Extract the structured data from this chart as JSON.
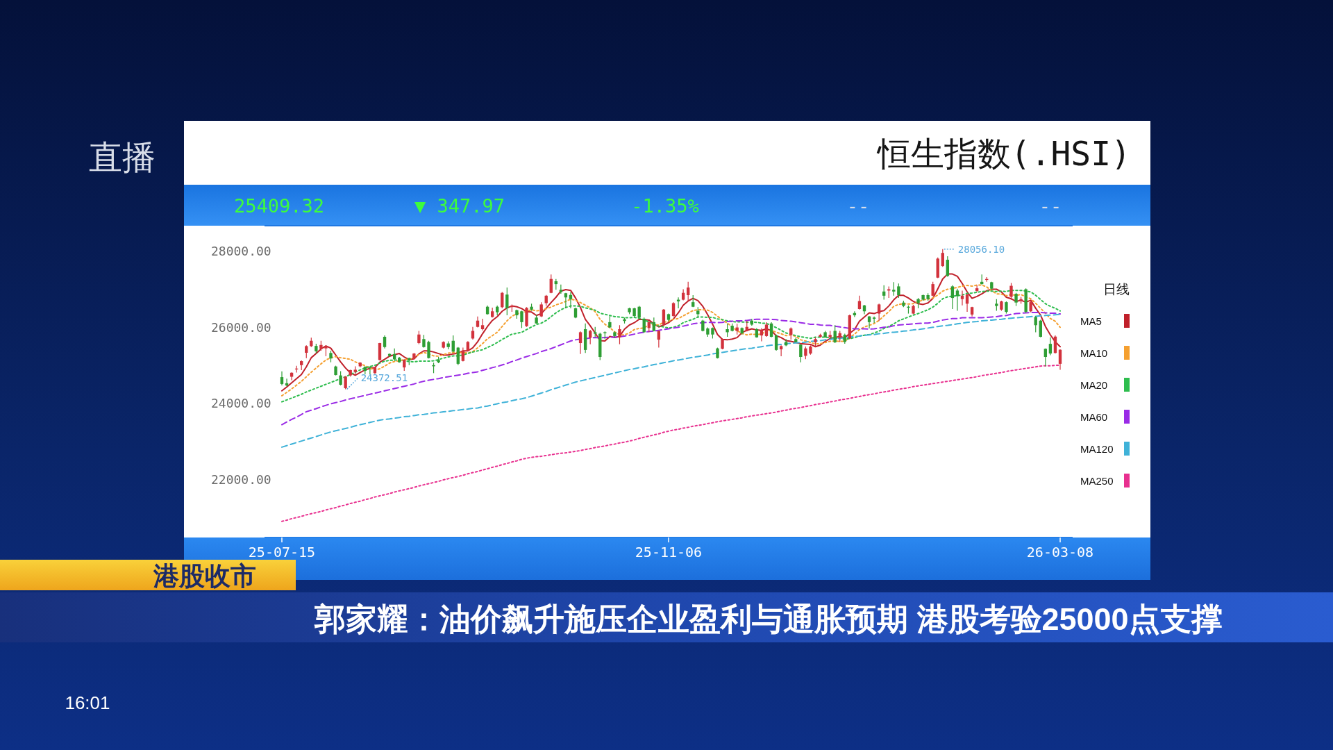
{
  "chart_data": {
    "type": "candlestick",
    "title": "恒生指数(.HSI)",
    "annotations": [
      "24372.51",
      "28056.10",
      "25409.32",
      "▼ 347.97",
      "-1.35%",
      "--",
      "--",
      "直播",
      "港股收市",
      "郭家耀：油价飙升施压企业盈利与通胀预期 港股考验25000点支撑",
      "16:01"
    ],
    "categories": [
      "25-07-15",
      null,
      null,
      null,
      null,
      null,
      null,
      null,
      null,
      null,
      null,
      null,
      null,
      null,
      null,
      null,
      null,
      null,
      null,
      null,
      null,
      null,
      null,
      null,
      null,
      null,
      null,
      null,
      null,
      null,
      null,
      null,
      null,
      null,
      null,
      null,
      null,
      null,
      null,
      null,
      null,
      null,
      null,
      null,
      null,
      null,
      null,
      null,
      null,
      null,
      null,
      null,
      null,
      null,
      null,
      null,
      null,
      null,
      null,
      null,
      null,
      null,
      null,
      null,
      null,
      null,
      null,
      null,
      null,
      null,
      null,
      null,
      null,
      null,
      null,
      null,
      null,
      null,
      null,
      "25-11-06",
      null,
      null,
      null,
      null,
      null,
      null,
      null,
      null,
      null,
      null,
      null,
      null,
      null,
      null,
      null,
      null,
      null,
      null,
      null,
      null,
      null,
      null,
      null,
      null,
      null,
      null,
      null,
      null,
      null,
      null,
      null,
      null,
      null,
      null,
      null,
      null,
      null,
      null,
      null,
      null,
      null,
      null,
      null,
      null,
      null,
      null,
      null,
      null,
      null,
      null,
      null,
      null,
      null,
      null,
      null,
      null,
      null,
      null,
      null,
      null,
      null,
      null,
      null,
      null,
      null,
      null,
      null,
      null,
      null,
      null,
      null,
      null,
      null,
      null,
      null,
      null,
      null,
      null,
      null,
      "26-03-08"
    ],
    "ohlc": [
      [
        24690,
        24840,
        24470,
        24510
      ],
      [
        24530,
        24650,
        24450,
        24470
      ],
      [
        24700,
        24815,
        24610,
        24805
      ],
      [
        24900,
        24990,
        24810,
        24915
      ],
      [
        25005,
        25130,
        24875,
        25110
      ],
      [
        25330,
        25525,
        25190,
        25505
      ],
      [
        25505,
        25725,
        25480,
        25645
      ],
      [
        25510,
        25565,
        25310,
        25370
      ],
      [
        25435,
        25645,
        25385,
        25535
      ],
      [
        25445,
        25510,
        25240,
        25505
      ],
      [
        25325,
        25385,
        25080,
        25180
      ],
      [
        24970,
        24990,
        24735,
        24745
      ],
      [
        24735,
        24845,
        24470,
        24490
      ],
      [
        24400,
        24715,
        24372.51,
        24705
      ],
      [
        24735,
        24885,
        24705,
        24875
      ],
      [
        24825,
        24975,
        24775,
        24885
      ],
      [
        24975,
        25085,
        24945,
        25070
      ],
      [
        24960,
        24975,
        24765,
        24855
      ],
      [
        24960,
        24975,
        24765,
        24935
      ],
      [
        24795,
        24960,
        24775,
        24945
      ],
      [
        25140,
        25590,
        25130,
        25585
      ],
      [
        25750,
        25785,
        25445,
        25480
      ],
      [
        25300,
        25310,
        25220,
        25250
      ],
      [
        25295,
        25445,
        25130,
        25160
      ],
      [
        25200,
        25220,
        25070,
        25080
      ],
      [
        24945,
        25160,
        24855,
        25145
      ],
      [
        25190,
        25200,
        25005,
        25130
      ],
      [
        25180,
        25325,
        25160,
        25310
      ],
      [
        25585,
        25905,
        25555,
        25810
      ],
      [
        25690,
        25800,
        25465,
        25480
      ],
      [
        25615,
        25645,
        25180,
        25190
      ],
      [
        25005,
        25070,
        24795,
        24975
      ],
      [
        25140,
        25220,
        25055,
        25080
      ],
      [
        25465,
        25630,
        25445,
        25615
      ],
      [
        25575,
        25630,
        25420,
        25480
      ],
      [
        25645,
        25785,
        25340,
        25360
      ],
      [
        25465,
        25480,
        25005,
        25040
      ],
      [
        25115,
        25465,
        25100,
        25385
      ],
      [
        25385,
        25635,
        25370,
        25615
      ],
      [
        25705,
        26010,
        25675,
        25905
      ],
      [
        26010,
        26285,
        25995,
        26175
      ],
      [
        25950,
        26225,
        25920,
        26055
      ],
      [
        26540,
        26570,
        26335,
        26345
      ],
      [
        26270,
        26515,
        26255,
        26420
      ],
      [
        26540,
        26570,
        26315,
        26395
      ],
      [
        26530,
        26925,
        26500,
        26905
      ],
      [
        26860,
        27045,
        26315,
        26500
      ],
      [
        26530,
        26600,
        26405,
        26570
      ],
      [
        26450,
        26465,
        26225,
        26315
      ],
      [
        26420,
        26435,
        25980,
        26135
      ],
      [
        26030,
        26530,
        26010,
        26510
      ],
      [
        26540,
        26620,
        26435,
        26465
      ],
      [
        26255,
        26335,
        26090,
        26100
      ],
      [
        26285,
        26660,
        26270,
        26600
      ],
      [
        26635,
        26850,
        26560,
        26830
      ],
      [
        26905,
        27390,
        26895,
        27270
      ],
      [
        27210,
        27270,
        26985,
        27135
      ],
      [
        26985,
        27125,
        26880,
        26925
      ],
      [
        26895,
        26905,
        26500,
        26785
      ],
      [
        26850,
        26925,
        26500,
        26740
      ],
      [
        26500,
        26515,
        26240,
        26255
      ],
      [
        25585,
        25890,
        25300,
        25870
      ],
      [
        25950,
        26100,
        25325,
        25405
      ],
      [
        25725,
        25930,
        25555,
        25905
      ],
      [
        25870,
        26010,
        25735,
        25830
      ],
      [
        25830,
        25860,
        25140,
        25220
      ],
      [
        25870,
        25890,
        25690,
        25845
      ],
      [
        26135,
        26295,
        25980,
        25995
      ],
      [
        25870,
        25890,
        25735,
        25770
      ],
      [
        25735,
        26055,
        25555,
        25950
      ],
      [
        26210,
        26255,
        26100,
        26165
      ],
      [
        26500,
        26515,
        26345,
        26395
      ],
      [
        26500,
        26510,
        26270,
        26295
      ],
      [
        26540,
        26560,
        26235,
        26255
      ],
      [
        26225,
        26255,
        25860,
        25870
      ],
      [
        25980,
        26165,
        25870,
        26135
      ],
      [
        26135,
        26255,
        25890,
        25905
      ],
      [
        25675,
        25920,
        25465,
        25905
      ],
      [
        26070,
        26480,
        26055,
        26465
      ],
      [
        26345,
        26360,
        26150,
        26195
      ],
      [
        26295,
        26660,
        26285,
        26635
      ],
      [
        26725,
        26785,
        26500,
        26680
      ],
      [
        26725,
        27000,
        26710,
        26905
      ],
      [
        26845,
        27195,
        26700,
        27045
      ],
      [
        26660,
        26845,
        26530,
        26540
      ],
      [
        26435,
        26530,
        26255,
        26345
      ],
      [
        26175,
        26195,
        25890,
        25905
      ],
      [
        25970,
        25995,
        25750,
        25810
      ],
      [
        25980,
        25995,
        25705,
        25810
      ],
      [
        25445,
        25465,
        25180,
        25190
      ],
      [
        25435,
        25705,
        25420,
        25690
      ],
      [
        25950,
        26100,
        25750,
        25870
      ],
      [
        26040,
        26100,
        25890,
        25905
      ],
      [
        25905,
        26090,
        25810,
        25995
      ],
      [
        25980,
        25995,
        25810,
        25840
      ],
      [
        25905,
        26175,
        25890,
        26010
      ],
      [
        26175,
        26225,
        26040,
        26070
      ],
      [
        25950,
        25980,
        25725,
        25735
      ],
      [
        25785,
        25980,
        25630,
        25920
      ],
      [
        25770,
        26135,
        25750,
        26070
      ],
      [
        26100,
        26135,
        25735,
        25750
      ],
      [
        25785,
        25810,
        25385,
        25405
      ],
      [
        25420,
        25525,
        25240,
        25505
      ],
      [
        25615,
        25690,
        25505,
        25525
      ],
      [
        25800,
        25995,
        25675,
        25970
      ],
      [
        25690,
        25735,
        25605,
        25615
      ],
      [
        25545,
        25555,
        25080,
        25220
      ],
      [
        25250,
        25495,
        25160,
        25445
      ],
      [
        25310,
        25525,
        25280,
        25495
      ],
      [
        25605,
        25735,
        25495,
        25690
      ],
      [
        25750,
        25830,
        25725,
        25800
      ],
      [
        25870,
        25905,
        25725,
        25735
      ],
      [
        25735,
        25905,
        25705,
        25800
      ],
      [
        25905,
        26055,
        25585,
        25605
      ],
      [
        25725,
        25905,
        25615,
        25845
      ],
      [
        25800,
        25830,
        25565,
        25615
      ],
      [
        25705,
        26335,
        25690,
        26315
      ],
      [
        26375,
        26420,
        26270,
        26315
      ],
      [
        26480,
        26830,
        26465,
        26690
      ],
      [
        26575,
        26590,
        26345,
        26420
      ],
      [
        26285,
        26295,
        25970,
        26135
      ],
      [
        26255,
        26285,
        26115,
        26225
      ],
      [
        26360,
        26620,
        26165,
        26600
      ],
      [
        26940,
        27105,
        26725,
        26830
      ],
      [
        26965,
        27075,
        26770,
        27000
      ],
      [
        26985,
        27185,
        26830,
        26940
      ],
      [
        27075,
        27150,
        26770,
        26845
      ],
      [
        26650,
        26700,
        26530,
        26560
      ],
      [
        26540,
        26575,
        26360,
        26515
      ],
      [
        26360,
        26590,
        26345,
        26560
      ],
      [
        26740,
        26770,
        26500,
        26635
      ],
      [
        26845,
        26860,
        26700,
        26725
      ],
      [
        26845,
        26895,
        26700,
        26740
      ],
      [
        26830,
        27195,
        26820,
        27135
      ],
      [
        27305,
        27835,
        27290,
        27805
      ],
      [
        27610,
        28056.1,
        27590,
        27955
      ],
      [
        27775,
        27865,
        27330,
        27350
      ],
      [
        27075,
        27105,
        26480,
        26770
      ],
      [
        26965,
        27015,
        26435,
        26820
      ],
      [
        26740,
        26965,
        26575,
        26830
      ],
      [
        26620,
        26880,
        26405,
        26860
      ],
      [
        26335,
        26540,
        26285,
        26530
      ],
      [
        26955,
        27105,
        26925,
        27025
      ],
      [
        27195,
        27390,
        27125,
        27135
      ],
      [
        27245,
        27320,
        27195,
        27270
      ],
      [
        27185,
        27195,
        26985,
        27015
      ],
      [
        26620,
        26740,
        26435,
        26560
      ],
      [
        26465,
        26700,
        26435,
        26680
      ],
      [
        26660,
        26680,
        26360,
        26405
      ],
      [
        26800,
        27165,
        26725,
        27090
      ],
      [
        26880,
        26905,
        26560,
        26650
      ],
      [
        26700,
        26800,
        26620,
        26740
      ],
      [
        27000,
        27025,
        26375,
        26405
      ],
      [
        26420,
        26700,
        26395,
        26660
      ],
      [
        26270,
        26295,
        25870,
        26055
      ],
      [
        26175,
        26195,
        25735,
        25750
      ],
      [
        25435,
        25445,
        24975,
        25220
      ],
      [
        25565,
        25735,
        25265,
        25310
      ],
      [
        25325,
        25785,
        25310,
        25755
      ],
      [
        25040,
        25420,
        24885,
        25409.32
      ]
    ],
    "colors": [
      "#2e9e34",
      "#2e9e34",
      "#d2323c",
      "#d2323c",
      "#d2323c",
      "#d2323c",
      "#d2323c",
      "#2e9e34",
      "#d2323c",
      "#d2323c",
      "#2e9e34",
      "#2e9e34",
      "#2e9e34",
      "#d2323c",
      "#d2323c",
      "#d2323c",
      "#d2323c",
      "#2e9e34",
      "#2e9e34",
      "#d2323c",
      "#d2323c",
      "#2e9e34",
      "#2e9e34",
      "#2e9e34",
      "#2e9e34",
      "#d2323c",
      "#2e9e34",
      "#d2323c",
      "#d2323c",
      "#2e9e34",
      "#2e9e34",
      "#2e9e34",
      "#2e9e34",
      "#d2323c",
      "#2e9e34",
      "#2e9e34",
      "#2e9e34",
      "#d2323c",
      "#d2323c",
      "#d2323c",
      "#d2323c",
      "#d2323c",
      "#2e9e34",
      "#d2323c",
      "#2e9e34",
      "#d2323c",
      "#2e9e34",
      "#d2323c",
      "#2e9e34",
      "#2e9e34",
      "#d2323c",
      "#2e9e34",
      "#2e9e34",
      "#d2323c",
      "#d2323c",
      "#d2323c",
      "#2e9e34",
      "#2e9e34",
      "#2e9e34",
      "#2e9e34",
      "#2e9e34",
      "#d2323c",
      "#2e9e34",
      "#d2323c",
      "#2e9e34",
      "#2e9e34",
      "#2e9e34",
      "#2e9e34",
      "#2e9e34",
      "#d2323c",
      "#2e9e34",
      "#2e9e34",
      "#2e9e34",
      "#2e9e34",
      "#2e9e34",
      "#d2323c",
      "#2e9e34",
      "#d2323c",
      "#d2323c",
      "#2e9e34",
      "#d2323c",
      "#2e9e34",
      "#d2323c",
      "#d2323c",
      "#2e9e34",
      "#2e9e34",
      "#2e9e34",
      "#2e9e34",
      "#2e9e34",
      "#2e9e34",
      "#d2323c",
      "#2e9e34",
      "#2e9e34",
      "#d2323c",
      "#2e9e34",
      "#d2323c",
      "#2e9e34",
      "#2e9e34",
      "#d2323c",
      "#d2323c",
      "#2e9e34",
      "#2e9e34",
      "#d2323c",
      "#2e9e34",
      "#d2323c",
      "#2e9e34",
      "#2e9e34",
      "#d2323c",
      "#d2323c",
      "#d2323c",
      "#d2323c",
      "#2e9e34",
      "#d2323c",
      "#2e9e34",
      "#d2323c",
      "#2e9e34",
      "#d2323c",
      "#2e9e34",
      "#d2323c",
      "#2e9e34",
      "#2e9e34",
      "#2e9e34",
      "#d2323c",
      "#2e9e34",
      "#d2323c",
      "#2e9e34",
      "#2e9e34",
      "#2e9e34",
      "#2e9e34",
      "#d2323c",
      "#2e9e34",
      "#2e9e34",
      "#2e9e34",
      "#d2323c",
      "#d2323c",
      "#d2323c",
      "#2e9e34",
      "#2e9e34",
      "#2e9e34",
      "#d2323c",
      "#d2323c",
      "#d2323c",
      "#d2323c",
      "#2e9e34",
      "#d2323c",
      "#2e9e34",
      "#2e9e34",
      "#d2323c",
      "#2e9e34",
      "#d2323c",
      "#2e9e34",
      "#d2323c",
      "#2e9e34",
      "#d2323c",
      "#2e9e34",
      "#2e9e34",
      "#2e9e34",
      "#2e9e34",
      "#d2323c",
      "#d2323c"
    ],
    "series": [
      {
        "name": "MA5",
        "type": "line",
        "color": "#c0202a",
        "line_style": "solid",
        "values": [
          24330,
          24430,
          24540,
          24650,
          24760,
          24960,
          25200,
          25310,
          25430,
          25510,
          25450,
          25270,
          25090,
          24930,
          24800,
          24740,
          24810,
          24880,
          24920,
          24940,
          25080,
          25160,
          25240,
          25280,
          25310,
          25220,
          25150,
          25170,
          25300,
          25380,
          25380,
          25350,
          25310,
          25270,
          25270,
          25300,
          25320,
          25380,
          25380,
          25460,
          25620,
          25830,
          26020,
          26180,
          26280,
          26420,
          26510,
          26560,
          26540,
          26490,
          26410,
          26400,
          26310,
          26360,
          26500,
          26650,
          26790,
          26950,
          26990,
          26970,
          26770,
          26520,
          26210,
          26040,
          25850,
          25650,
          25640,
          25760,
          25730,
          25760,
          25950,
          26060,
          26120,
          26210,
          26200,
          26190,
          26090,
          26010,
          26060,
          26120,
          26220,
          26380,
          26580,
          26690,
          26760,
          26700,
          26550,
          26330,
          26080,
          25810,
          25680,
          25670,
          25690,
          25730,
          25860,
          25920,
          25960,
          25930,
          25920,
          25960,
          25910,
          25780,
          25730,
          25650,
          25630,
          25600,
          25570,
          25560,
          25550,
          25490,
          25530,
          25630,
          25700,
          25730,
          25760,
          25720,
          25840,
          25940,
          26160,
          26270,
          26380,
          26360,
          26410,
          26440,
          26560,
          26720,
          26840,
          26840,
          26770,
          26680,
          26620,
          26600,
          26640,
          26760,
          27010,
          27270,
          27400,
          27400,
          27340,
          27150,
          26930,
          26760,
          26810,
          26880,
          26960,
          27000,
          27000,
          26930,
          26790,
          26750,
          26680,
          26710,
          26660,
          26710,
          26500,
          26320,
          26020,
          25800,
          25620,
          25490
        ]
      },
      {
        "name": "MA10",
        "type": "line",
        "color": "#f5a030",
        "line_style": "dotted",
        "values": [
          24200,
          24290,
          24380,
          24480,
          24580,
          24700,
          24820,
          24930,
          25040,
          25140,
          25200,
          25230,
          25200,
          25180,
          25160,
          25090,
          25040,
          24990,
          24930,
          24870,
          24910,
          24980,
          25060,
          25100,
          25120,
          25150,
          25160,
          25200,
          25290,
          25340,
          25300,
          25250,
          25240,
          25280,
          25320,
          25340,
          25330,
          25340,
          25320,
          25360,
          25460,
          25570,
          25700,
          25780,
          25870,
          26020,
          26170,
          26290,
          26360,
          26380,
          26420,
          26460,
          26430,
          26450,
          26490,
          26530,
          26590,
          26630,
          26680,
          26740,
          26710,
          26650,
          26580,
          26510,
          26410,
          26210,
          26080,
          25990,
          25880,
          25800,
          25800,
          25850,
          25940,
          25970,
          25980,
          26070,
          26070,
          26060,
          26130,
          26160,
          26210,
          26230,
          26300,
          26370,
          26440,
          26460,
          26460,
          26450,
          26390,
          26290,
          26190,
          26110,
          26010,
          25910,
          25840,
          25800,
          25820,
          25810,
          25820,
          25910,
          25920,
          25870,
          25830,
          25780,
          25800,
          25760,
          25670,
          25640,
          25600,
          25560,
          25570,
          25600,
          25630,
          25640,
          25630,
          25630,
          25730,
          25820,
          25940,
          26010,
          26050,
          26100,
          26180,
          26300,
          26410,
          26550,
          26600,
          26620,
          26610,
          26620,
          26670,
          26720,
          26740,
          26770,
          26850,
          26950,
          27000,
          27020,
          27050,
          27080,
          27100,
          27080,
          27110,
          27110,
          27060,
          26960,
          26880,
          26870,
          26830,
          26860,
          26840,
          26860,
          26800,
          26750,
          26630,
          26500,
          26370,
          26230,
          26160,
          26000
        ]
      },
      {
        "name": "MA20",
        "type": "line",
        "color": "#2ebd4e",
        "line_style": "dotted",
        "values": [
          24040,
          24090,
          24140,
          24190,
          24240,
          24300,
          24350,
          24400,
          24450,
          24500,
          24550,
          24600,
          24650,
          24700,
          24760,
          24820,
          24880,
          24930,
          24970,
          25000,
          25060,
          25110,
          25130,
          25140,
          25140,
          25120,
          25100,
          25090,
          25110,
          25110,
          25110,
          25120,
          25150,
          25190,
          25220,
          25250,
          25250,
          25270,
          25310,
          25350,
          25380,
          25410,
          25470,
          25530,
          25600,
          25680,
          25750,
          25820,
          25840,
          25870,
          25940,
          26010,
          26070,
          26110,
          26180,
          26280,
          26380,
          26460,
          26520,
          26560,
          26560,
          26550,
          26510,
          26480,
          26450,
          26370,
          26340,
          26310,
          26280,
          26270,
          26250,
          26250,
          26260,
          26240,
          26190,
          26140,
          26080,
          26030,
          26010,
          25980,
          26000,
          26040,
          26120,
          26170,
          26210,
          26270,
          26270,
          26260,
          26260,
          26220,
          26200,
          26170,
          26150,
          26140,
          26140,
          26130,
          26140,
          26130,
          26110,
          26100,
          26050,
          25990,
          25920,
          25850,
          25820,
          25780,
          25750,
          25730,
          25710,
          25740,
          25740,
          25740,
          25730,
          25710,
          25710,
          25690,
          25700,
          25730,
          25770,
          25790,
          25810,
          25850,
          25900,
          25970,
          26020,
          26090,
          26170,
          26220,
          26270,
          26320,
          26360,
          26410,
          26460,
          26530,
          26630,
          26750,
          26800,
          26820,
          26830,
          26850,
          26890,
          26900,
          26920,
          26940,
          26950,
          26950,
          26940,
          26950,
          26940,
          26970,
          26970,
          26970,
          26950,
          26930,
          26840,
          26730,
          26620,
          26550,
          26500,
          26430
        ]
      },
      {
        "name": "MA60",
        "type": "line",
        "color": "#9a2be6",
        "line_style": "dashed",
        "values": [
          23440,
          23510,
          23580,
          23640,
          23710,
          23780,
          23820,
          23860,
          23910,
          23950,
          23990,
          24020,
          24050,
          24090,
          24120,
          24150,
          24180,
          24210,
          24240,
          24270,
          24300,
          24330,
          24360,
          24390,
          24420,
          24450,
          24480,
          24510,
          24550,
          24580,
          24610,
          24630,
          24650,
          24680,
          24700,
          24720,
          24740,
          24760,
          24790,
          24810,
          24830,
          24870,
          24900,
          24940,
          24970,
          25010,
          25050,
          25100,
          25140,
          25190,
          25230,
          25270,
          25310,
          25360,
          25400,
          25440,
          25490,
          25540,
          25590,
          25640,
          25670,
          25690,
          25700,
          25720,
          25730,
          25720,
          25730,
          25740,
          25740,
          25750,
          25770,
          25790,
          25820,
          25850,
          25870,
          25890,
          25900,
          25920,
          25940,
          25960,
          25980,
          26000,
          26030,
          26060,
          26090,
          26110,
          26120,
          26130,
          26130,
          26120,
          26130,
          26150,
          26160,
          26170,
          26170,
          26180,
          26200,
          26210,
          26210,
          26210,
          26210,
          26200,
          26180,
          26170,
          26160,
          26140,
          26120,
          26100,
          26080,
          26080,
          26060,
          26050,
          26050,
          26030,
          26010,
          25990,
          25970,
          25960,
          25960,
          25960,
          25950,
          25960,
          25980,
          26000,
          26010,
          26040,
          26060,
          26070,
          26080,
          26090,
          26100,
          26110,
          26110,
          26130,
          26160,
          26190,
          26210,
          26230,
          26230,
          26250,
          26250,
          26250,
          26250,
          26250,
          26260,
          26270,
          26280,
          26300,
          26310,
          26340,
          26360,
          26370,
          26380,
          26390,
          26390,
          26390,
          26380,
          26370,
          26370,
          26350
        ]
      },
      {
        "name": "MA120",
        "type": "line",
        "color": "#3fb2d8",
        "line_style": "dashed",
        "values": [
          22850,
          22890,
          22930,
          22970,
          23010,
          23050,
          23090,
          23130,
          23170,
          23210,
          23250,
          23280,
          23310,
          23340,
          23370,
          23410,
          23440,
          23470,
          23500,
          23530,
          23560,
          23580,
          23590,
          23610,
          23630,
          23650,
          23660,
          23680,
          23700,
          23710,
          23730,
          23750,
          23760,
          23780,
          23790,
          23810,
          23820,
          23840,
          23850,
          23870,
          23880,
          23910,
          23930,
          23960,
          23990,
          24020,
          24040,
          24070,
          24100,
          24120,
          24150,
          24190,
          24230,
          24270,
          24310,
          24360,
          24400,
          24440,
          24480,
          24520,
          24560,
          24590,
          24620,
          24650,
          24680,
          24710,
          24740,
          24770,
          24800,
          24830,
          24860,
          24890,
          24910,
          24940,
          24960,
          24990,
          25020,
          25040,
          25070,
          25090,
          25120,
          25140,
          25160,
          25190,
          25210,
          25230,
          25250,
          25270,
          25300,
          25320,
          25340,
          25360,
          25380,
          25400,
          25420,
          25440,
          25450,
          25470,
          25490,
          25510,
          25530,
          25540,
          25550,
          25570,
          25580,
          25590,
          25600,
          25610,
          25630,
          25640,
          25650,
          25670,
          25680,
          25700,
          25710,
          25730,
          25740,
          25760,
          25770,
          25790,
          25800,
          25810,
          25830,
          25840,
          25860,
          25870,
          25880,
          25900,
          25910,
          25930,
          25940,
          25960,
          25980,
          26000,
          26020,
          26040,
          26050,
          26070,
          26090,
          26110,
          26130,
          26140,
          26150,
          26170,
          26180,
          26190,
          26200,
          26210,
          26230,
          26240,
          26250,
          26260,
          26270,
          26280,
          26290,
          26300,
          26310,
          26320,
          26330,
          26340
        ]
      },
      {
        "name": "MA250",
        "type": "line",
        "color": "#e8308f",
        "line_style": "dotted",
        "values": [
          20900,
          20930,
          20970,
          21000,
          21030,
          21070,
          21100,
          21130,
          21160,
          21200,
          21230,
          21260,
          21300,
          21330,
          21370,
          21400,
          21430,
          21470,
          21500,
          21540,
          21570,
          21600,
          21630,
          21670,
          21700,
          21730,
          21760,
          21790,
          21830,
          21860,
          21890,
          21920,
          21950,
          21990,
          22020,
          22050,
          22080,
          22110,
          22150,
          22180,
          22210,
          22250,
          22280,
          22320,
          22350,
          22390,
          22420,
          22460,
          22490,
          22530,
          22560,
          22580,
          22600,
          22610,
          22630,
          22650,
          22670,
          22690,
          22700,
          22720,
          22740,
          22760,
          22790,
          22810,
          22840,
          22860,
          22880,
          22910,
          22930,
          22960,
          22980,
          23010,
          23040,
          23080,
          23110,
          23140,
          23170,
          23200,
          23240,
          23270,
          23300,
          23320,
          23350,
          23370,
          23400,
          23420,
          23440,
          23470,
          23490,
          23520,
          23540,
          23560,
          23580,
          23600,
          23620,
          23650,
          23670,
          23690,
          23710,
          23730,
          23750,
          23770,
          23800,
          23820,
          23850,
          23870,
          23890,
          23920,
          23940,
          23970,
          23990,
          24010,
          24040,
          24060,
          24090,
          24110,
          24130,
          24160,
          24180,
          24210,
          24230,
          24250,
          24280,
          24300,
          24320,
          24350,
          24370,
          24390,
          24410,
          24440,
          24460,
          24480,
          24500,
          24520,
          24540,
          24560,
          24580,
          24600,
          24620,
          24640,
          24660,
          24680,
          24700,
          24730,
          24750,
          24770,
          24790,
          24810,
          24840,
          24860,
          24880,
          24900,
          24920,
          24940,
          24960,
          24980,
          24990,
          24990,
          25000,
          25000
        ]
      }
    ],
    "ylim": [
      20475,
      28670
    ],
    "yticks": [
      {
        "value": 22000,
        "label": "22000.00"
      },
      {
        "value": 24000,
        "label": "24000.00"
      },
      {
        "value": 26000,
        "label": "26000.00"
      },
      {
        "value": 28000,
        "label": "28000.00"
      }
    ],
    "legend": "right",
    "legend_title": "日线"
  }
}
